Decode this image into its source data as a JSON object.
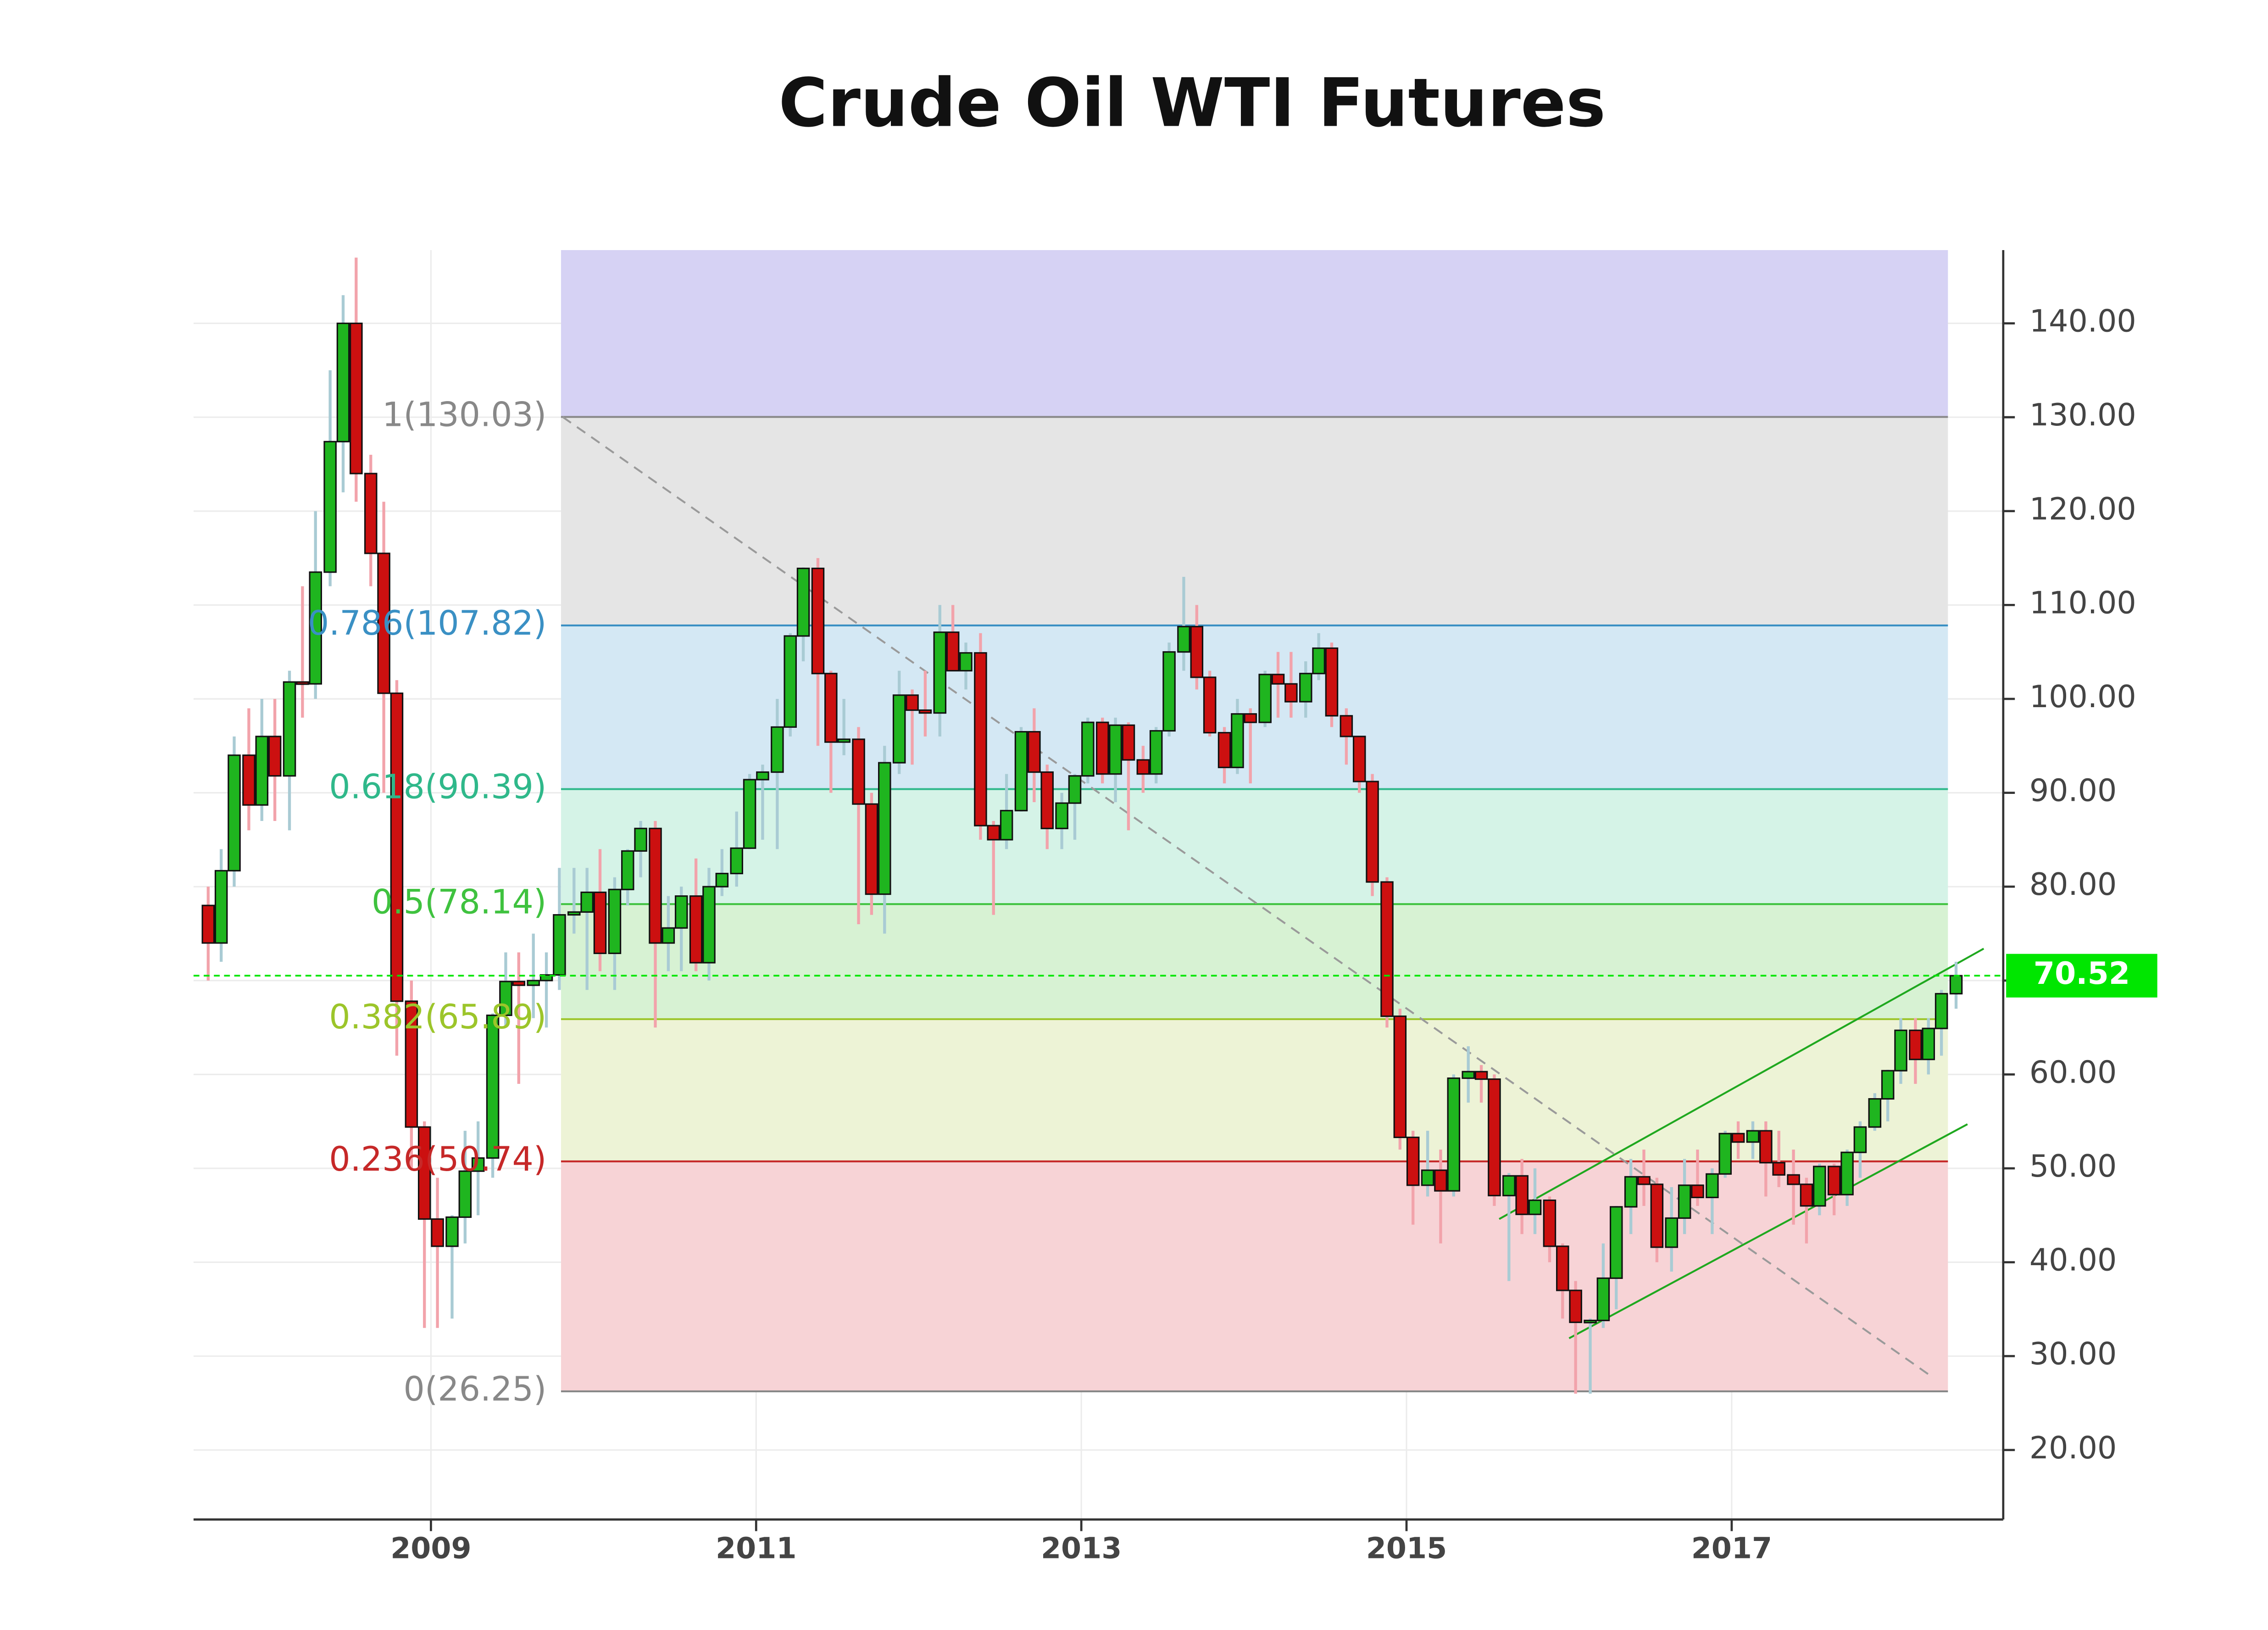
{
  "chart_data": {
    "type": "candlestick",
    "title": "Crude Oil WTI Futures",
    "x": [
      2007.63,
      2007.71,
      2007.79,
      2007.88,
      2007.96,
      2008.04,
      2008.13,
      2008.21,
      2008.29,
      2008.38,
      2008.46,
      2008.54,
      2008.63,
      2008.71,
      2008.79,
      2008.88,
      2008.96,
      2009.04,
      2009.13,
      2009.21,
      2009.29,
      2009.38,
      2009.46,
      2009.54,
      2009.63,
      2009.71,
      2009.79,
      2009.88,
      2009.96,
      2010.04,
      2010.13,
      2010.21,
      2010.29,
      2010.38,
      2010.46,
      2010.54,
      2010.63,
      2010.71,
      2010.79,
      2010.88,
      2010.96,
      2011.04,
      2011.13,
      2011.21,
      2011.29,
      2011.38,
      2011.46,
      2011.54,
      2011.63,
      2011.71,
      2011.79,
      2011.88,
      2011.96,
      2012.04,
      2012.13,
      2012.21,
      2012.29,
      2012.38,
      2012.46,
      2012.54,
      2012.63,
      2012.71,
      2012.79,
      2012.88,
      2012.96,
      2013.04,
      2013.13,
      2013.21,
      2013.29,
      2013.38,
      2013.46,
      2013.54,
      2013.63,
      2013.71,
      2013.79,
      2013.88,
      2013.96,
      2014.04,
      2014.13,
      2014.21,
      2014.29,
      2014.38,
      2014.46,
      2014.54,
      2014.63,
      2014.71,
      2014.79,
      2014.88,
      2014.96,
      2015.04,
      2015.13,
      2015.21,
      2015.29,
      2015.38,
      2015.46,
      2015.54,
      2015.63,
      2015.71,
      2015.79,
      2015.88,
      2015.96,
      2016.04,
      2016.13,
      2016.21,
      2016.29,
      2016.38,
      2016.46,
      2016.54,
      2016.63,
      2016.71,
      2016.79,
      2016.88,
      2016.96,
      2017.04,
      2017.13,
      2017.21,
      2017.29,
      2017.38,
      2017.46,
      2017.54,
      2017.63,
      2017.71,
      2017.79,
      2017.88,
      2017.96,
      2018.04,
      2018.13,
      2018.21,
      2018.29,
      2018.38
    ],
    "open": [
      78,
      74,
      81.7,
      94,
      88.7,
      96,
      91.8,
      101.8,
      101.6,
      113.5,
      127.4,
      140,
      124,
      115.5,
      100.6,
      67.8,
      54.4,
      44.6,
      41.7,
      44.8,
      49.7,
      51.1,
      66.3,
      69.9,
      69.5,
      70,
      70.6,
      77,
      77.3,
      79.4,
      72.9,
      79.7,
      83.8,
      86.2,
      74,
      75.6,
      79,
      71.9,
      80,
      81.4,
      84.1,
      91.4,
      92.2,
      97,
      106.7,
      113.9,
      102.7,
      95.4,
      95.7,
      88.8,
      79.2,
      93.2,
      100.4,
      98.8,
      98.5,
      107.1,
      103,
      104.9,
      86.5,
      85,
      88.1,
      96.5,
      92.2,
      86.2,
      88.9,
      91.8,
      97.5,
      92,
      97.2,
      93.5,
      92,
      96.6,
      105,
      107.7,
      102.3,
      96.4,
      92.7,
      98.4,
      97.5,
      102.6,
      101.6,
      99.7,
      102.7,
      105.4,
      98.2,
      96,
      91.2,
      80.5,
      66.2,
      53.3,
      48.2,
      49.8,
      47.6,
      59.6,
      60.3,
      59.5,
      47.1,
      49.2,
      45.1,
      46.6,
      41.7,
      37,
      33.6,
      33.8,
      38.3,
      45.9,
      49.1,
      48.3,
      41.6,
      44.7,
      48.2,
      46.9,
      49.4,
      53.7,
      52.8,
      54,
      50.6,
      49.3,
      48.3,
      46,
      50.2,
      47.2,
      51.7,
      54.4,
      57.4,
      60.4,
      64.7,
      61.6,
      64.9,
      68.6
    ],
    "high": [
      80,
      84,
      96,
      99,
      100,
      100,
      103,
      112,
      120,
      135,
      143,
      147,
      126,
      121,
      102,
      70,
      55,
      49,
      45,
      54,
      55,
      66.5,
      73,
      73,
      75,
      73,
      82,
      82,
      82,
      84,
      81,
      84,
      87,
      87,
      79,
      80,
      83,
      82,
      84,
      88,
      92,
      93,
      100,
      107,
      114,
      115,
      103,
      100,
      97,
      90,
      95,
      103,
      101,
      103,
      110,
      110,
      106,
      107,
      87,
      92,
      97,
      99,
      93,
      90,
      92,
      98,
      98,
      98,
      97.5,
      95,
      97,
      106,
      113,
      110,
      103,
      97,
      100,
      99,
      103,
      105,
      105,
      104,
      107,
      106,
      99,
      96,
      92,
      81,
      67,
      54,
      54,
      52,
      60,
      63,
      61,
      60,
      49.5,
      51,
      50,
      47,
      42,
      38,
      34,
      42,
      46,
      51,
      52,
      49,
      48,
      51,
      52,
      50,
      54,
      55,
      55,
      55,
      54,
      52,
      49,
      50.5,
      50.5,
      52,
      55,
      58,
      60.5,
      66,
      66,
      66,
      69,
      72
    ],
    "low": [
      70,
      72,
      80,
      86,
      87,
      87,
      86,
      98,
      100,
      112,
      122,
      121,
      112,
      90,
      62,
      50,
      33,
      33,
      34,
      42,
      45,
      49,
      65,
      59,
      66,
      65,
      69,
      75,
      69,
      71,
      69,
      78,
      81,
      65,
      71,
      71,
      71,
      70,
      79,
      80,
      84,
      85,
      84,
      96,
      104,
      95,
      90,
      94,
      76,
      77,
      75,
      92,
      93,
      96,
      96,
      103,
      101,
      85,
      77,
      84,
      88,
      89,
      84,
      84,
      85,
      91,
      91,
      89,
      86,
      90,
      91,
      96,
      103,
      101,
      96,
      91,
      92,
      91,
      97,
      98,
      98,
      98,
      102,
      97,
      93,
      90,
      79,
      65,
      52,
      44,
      47,
      42,
      47,
      57,
      57,
      46,
      38,
      43,
      43,
      40,
      34,
      26,
      26,
      33,
      35,
      43,
      46,
      40,
      39,
      43,
      46,
      43,
      49,
      51,
      51,
      47,
      48,
      44,
      42,
      45,
      45,
      46,
      49,
      54,
      55,
      59,
      59,
      60,
      62,
      67
    ],
    "close": [
      74,
      81.7,
      94,
      88.7,
      96,
      91.8,
      101.8,
      101.6,
      113.5,
      127.4,
      140,
      124,
      115.5,
      100.6,
      67.8,
      54.4,
      44.6,
      41.7,
      44.8,
      49.7,
      51.1,
      66.3,
      69.9,
      69.5,
      70,
      70.6,
      77,
      77.3,
      79.4,
      72.9,
      79.7,
      83.8,
      86.2,
      74,
      75.6,
      79,
      71.9,
      80,
      81.4,
      84.1,
      91.4,
      92.2,
      97,
      106.7,
      113.9,
      102.7,
      95.4,
      95.7,
      88.8,
      79.2,
      93.2,
      100.4,
      98.8,
      98.5,
      107.1,
      103,
      104.9,
      86.5,
      85,
      88.1,
      96.5,
      92.2,
      86.2,
      88.9,
      91.8,
      97.5,
      92,
      97.2,
      93.5,
      92,
      96.6,
      105,
      107.7,
      102.3,
      96.4,
      92.7,
      98.4,
      97.5,
      102.6,
      101.6,
      99.7,
      102.7,
      105.4,
      98.2,
      96,
      91.2,
      80.5,
      66.2,
      53.3,
      48.2,
      49.8,
      47.6,
      59.6,
      60.3,
      59.5,
      47.1,
      49.2,
      45.1,
      46.6,
      41.7,
      37,
      33.6,
      33.8,
      38.3,
      45.9,
      49.1,
      48.3,
      41.6,
      44.7,
      48.2,
      46.9,
      49.4,
      53.7,
      52.8,
      54,
      50.6,
      49.3,
      48.3,
      46,
      50.2,
      47.2,
      51.7,
      54.4,
      57.4,
      60.4,
      64.7,
      61.6,
      64.9,
      68.6,
      70.52
    ],
    "up_color": "#1fb51f",
    "down_color": "#cc1010",
    "up_wick_color": "#a9cbd4",
    "down_wick_color": "#f2a3ab",
    "xlim": [
      2007.54,
      2018.67
    ],
    "xticks": [
      2009,
      2011,
      2013,
      2015,
      2017
    ],
    "ylim": [
      12.6,
      147.8
    ],
    "yticks": [
      {
        "value": 20,
        "label": "20.00"
      },
      {
        "value": 30,
        "label": "30.00"
      },
      {
        "value": 40,
        "label": "40.00"
      },
      {
        "value": 50,
        "label": "50.00"
      },
      {
        "value": 60,
        "label": "60.00"
      },
      {
        "value": 70,
        "label": "70.00"
      },
      {
        "value": 80,
        "label": "80.00"
      },
      {
        "value": 90,
        "label": "90.00"
      },
      {
        "value": 100,
        "label": "100.00"
      },
      {
        "value": 110,
        "label": "110.00"
      },
      {
        "value": 120,
        "label": "120.00"
      },
      {
        "value": 130,
        "label": "130.00"
      },
      {
        "value": 140,
        "label": "140.00"
      }
    ],
    "grid": true,
    "fib_x": [
      2009.8,
      2018.33
    ],
    "fib_levels": [
      {
        "label": "0(26.25)",
        "value": 26.25,
        "color": "#888888",
        "fill": "#f7d3d6"
      },
      {
        "label": "0.236(50.74)",
        "value": 50.74,
        "color": "#c62828",
        "fill": "#edf3d6"
      },
      {
        "label": "0.382(65.89)",
        "value": 65.89,
        "color": "#9cc52a",
        "fill": "#d7f2d3"
      },
      {
        "label": "0.5(78.14)",
        "value": 78.14,
        "color": "#3fc23f",
        "fill": "#d5f3e7"
      },
      {
        "label": "0.618(90.39)",
        "value": 90.39,
        "color": "#2fb88a",
        "fill": "#d4e8f4"
      },
      {
        "label": "0.786(107.82)",
        "value": 107.82,
        "color": "#3a90c4",
        "fill": "#e5e5e5"
      },
      {
        "label": "1(130.03)",
        "value": 130.03,
        "color": "#888888",
        "fill": "#d6d2f4"
      }
    ],
    "trendlines": [
      {
        "x": [
          2009.81,
          2018.24
        ],
        "y": [
          130.03,
          27.7
        ],
        "color": "#9a9a9a",
        "dashed": true
      },
      {
        "x": [
          2015.57,
          2018.55
        ],
        "y": [
          44.6,
          73.4
        ],
        "color": "#1fa81f",
        "dashed": false
      },
      {
        "x": [
          2016.0,
          2018.45
        ],
        "y": [
          31.9,
          54.7
        ],
        "color": "#1fa81f",
        "dashed": false
      }
    ],
    "last_price": 70.52,
    "last_price_color": "#00e600"
  }
}
